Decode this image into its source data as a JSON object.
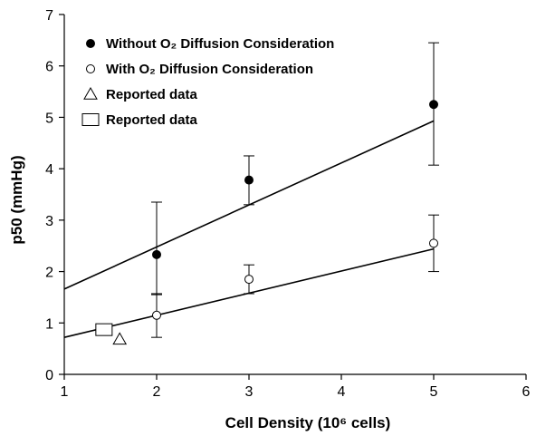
{
  "chart_data": {
    "type": "scatter",
    "xlabel": "Cell Density (10⁶ cells)",
    "ylabel": "p50 (mmHg)",
    "xlim": [
      1,
      6
    ],
    "ylim": [
      0,
      7
    ],
    "xticks": [
      "1",
      "2",
      "3",
      "4",
      "5",
      "6"
    ],
    "yticks": [
      "0",
      "1",
      "2",
      "3",
      "4",
      "5",
      "6",
      "7"
    ],
    "grid": false,
    "legend_position": "top-left",
    "series": [
      {
        "name": "Without O₂ Diffusion Consideration",
        "marker": "filled-circle",
        "points": [
          {
            "x": 2,
            "y": 2.33,
            "err_low": 1.55,
            "err_high": 3.35
          },
          {
            "x": 3,
            "y": 3.78,
            "err_low": 3.3,
            "err_high": 4.25
          },
          {
            "x": 5,
            "y": 5.25,
            "err_low": 4.07,
            "err_high": 6.45
          }
        ],
        "fit_line": [
          [
            1,
            1.66
          ],
          [
            5,
            4.93
          ]
        ]
      },
      {
        "name": "With O₂ Diffusion Consideration",
        "marker": "open-circle",
        "points": [
          {
            "x": 2,
            "y": 1.15,
            "err_low": 0.72,
            "err_high": 1.57
          },
          {
            "x": 3,
            "y": 1.85,
            "err_low": 1.57,
            "err_high": 2.13
          },
          {
            "x": 5,
            "y": 2.55,
            "err_low": 2.0,
            "err_high": 3.1
          }
        ],
        "fit_line": [
          [
            1,
            0.72
          ],
          [
            5,
            2.44
          ]
        ]
      },
      {
        "name": "Reported data",
        "marker": "open-triangle",
        "points": [
          {
            "x": 1.6,
            "y": 0.68
          }
        ]
      },
      {
        "name": "Reported data",
        "marker": "open-square",
        "points": [
          {
            "x": 1.43,
            "y": 0.87
          }
        ]
      }
    ]
  }
}
